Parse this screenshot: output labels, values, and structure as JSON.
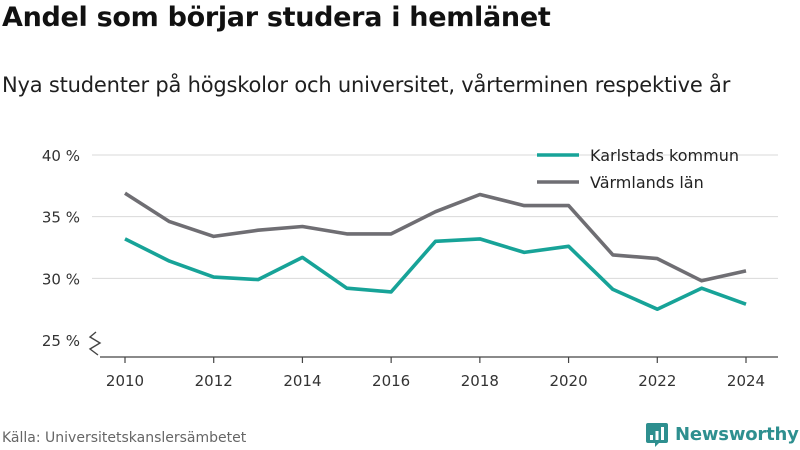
{
  "header": {
    "title": "Andel som börjar studera i hemlänet",
    "subtitle": "Nya studenter på högskolor och universitet, vårterminen respektive år"
  },
  "footer": {
    "source": "Källa: Universitetskanslersämbetet",
    "brand": "Newsworthy"
  },
  "colors": {
    "karlstad": "#17a398",
    "varmland": "#6f6e73",
    "grid": "#d9d9d9",
    "axis": "#444444",
    "brand": "#2e8f8f"
  },
  "chart_data": {
    "type": "line",
    "title": "Andel som börjar studera i hemlänet",
    "subtitle": "Nya studenter på högskolor och universitet, vårterminen respektive år",
    "x": [
      2010,
      2011,
      2012,
      2013,
      2014,
      2015,
      2016,
      2017,
      2018,
      2019,
      2020,
      2021,
      2022,
      2023,
      2024
    ],
    "x_ticks": [
      2010,
      2012,
      2014,
      2016,
      2018,
      2020,
      2022,
      2024
    ],
    "x_tick_labels": [
      "2010",
      "2012",
      "2014",
      "2016",
      "2018",
      "2020",
      "2022",
      "2024"
    ],
    "y_ticks": [
      25,
      30,
      35,
      40
    ],
    "y_tick_labels": [
      "25 %",
      "30 %",
      "35 %",
      "40 %"
    ],
    "ylim": [
      25,
      40
    ],
    "y_axis_break": true,
    "grid": true,
    "legend_position": "top-right",
    "series": [
      {
        "name": "Karlstads kommun",
        "color": "#17a398",
        "values": [
          33.2,
          31.4,
          30.1,
          29.9,
          31.7,
          29.2,
          28.9,
          33.0,
          33.2,
          32.1,
          32.6,
          29.1,
          27.5,
          29.2,
          27.9
        ]
      },
      {
        "name": "Värmlands län",
        "color": "#6f6e73",
        "values": [
          36.9,
          34.6,
          33.4,
          33.9,
          34.2,
          33.6,
          33.6,
          35.4,
          36.8,
          35.9,
          35.9,
          31.9,
          31.6,
          29.8,
          30.6
        ]
      }
    ]
  }
}
